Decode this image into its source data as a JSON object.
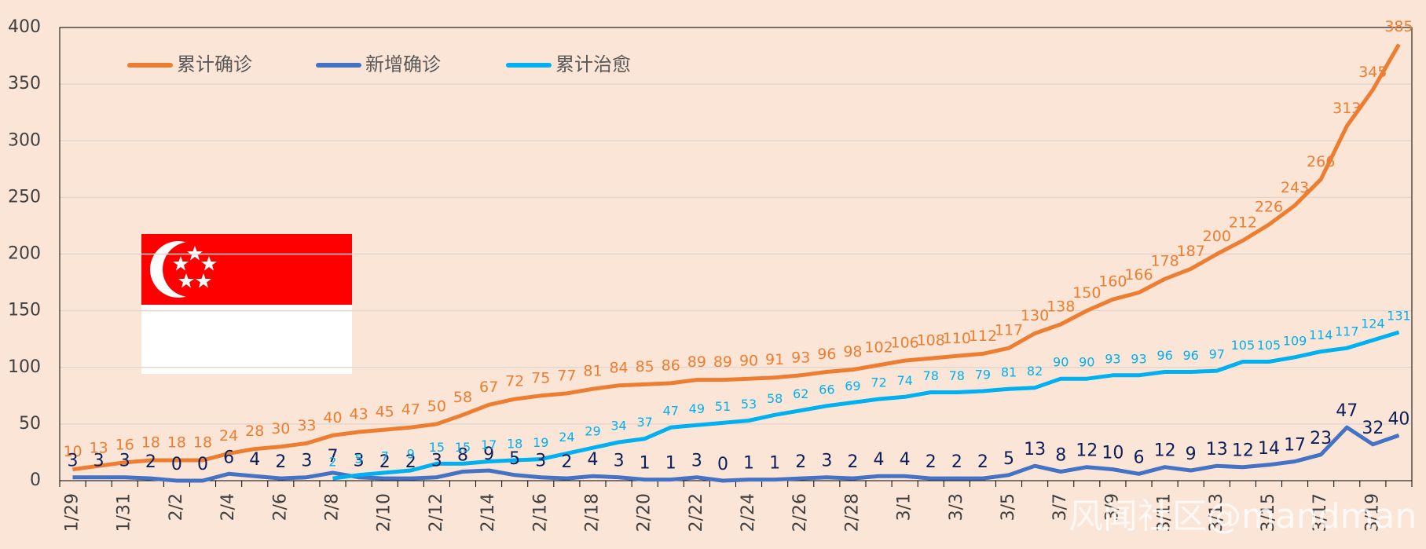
{
  "chart_data": {
    "type": "line",
    "categories": [
      "1/29",
      null,
      "1/31",
      null,
      "2/2",
      null,
      "2/4",
      null,
      "2/6",
      null,
      "2/8",
      null,
      "2/10",
      null,
      "2/12",
      null,
      "2/14",
      null,
      "2/16",
      null,
      "2/18",
      null,
      "2/20",
      null,
      "2/22",
      null,
      "2/24",
      null,
      "2/26",
      null,
      "2/28",
      null,
      "3/1",
      null,
      "3/3",
      null,
      "3/5",
      null,
      "3/7",
      null,
      "3/9",
      null,
      "3/11",
      null,
      "3/13",
      null,
      "3/15",
      null,
      "3/17",
      null,
      "3/19",
      null
    ],
    "series": [
      {
        "name": "累计确诊",
        "color": "#ed7d31",
        "label_color": "#ed7d31",
        "values": [
          10,
          13,
          16,
          18,
          18,
          18,
          24,
          28,
          30,
          33,
          40,
          43,
          45,
          47,
          50,
          58,
          67,
          72,
          75,
          77,
          81,
          84,
          85,
          86,
          89,
          89,
          90,
          91,
          93,
          96,
          98,
          102,
          106,
          108,
          110,
          112,
          117,
          130,
          138,
          150,
          160,
          166,
          178,
          187,
          200,
          212,
          226,
          243,
          266,
          313,
          345,
          385
        ]
      },
      {
        "name": "新增确诊",
        "color": "#4472c4",
        "label_color": "#0b1f5c",
        "values": [
          3,
          3,
          3,
          2,
          0,
          0,
          6,
          4,
          2,
          3,
          7,
          3,
          2,
          2,
          3,
          8,
          9,
          5,
          3,
          2,
          4,
          3,
          1,
          1,
          3,
          0,
          1,
          1,
          2,
          3,
          2,
          4,
          4,
          2,
          2,
          2,
          5,
          13,
          8,
          12,
          10,
          6,
          12,
          9,
          13,
          12,
          14,
          17,
          23,
          47,
          32,
          40
        ]
      },
      {
        "name": "累计治愈",
        "color": "#00b0f0",
        "label_color": "#00b0f0",
        "values": [
          null,
          null,
          null,
          null,
          null,
          null,
          null,
          null,
          null,
          null,
          2,
          5,
          7,
          9,
          15,
          15,
          17,
          18,
          19,
          24,
          29,
          34,
          37,
          47,
          49,
          51,
          53,
          58,
          62,
          66,
          69,
          72,
          74,
          78,
          78,
          79,
          81,
          82,
          90,
          90,
          93,
          93,
          96,
          96,
          97,
          105,
          105,
          109,
          114,
          117,
          124,
          131
        ]
      }
    ],
    "ylim": [
      0,
      400
    ],
    "yticks": [
      0,
      50,
      100,
      150,
      200,
      250,
      300,
      350,
      400
    ],
    "grid": true,
    "legend": "top-left",
    "watermark": "风闻社区@mandman"
  }
}
